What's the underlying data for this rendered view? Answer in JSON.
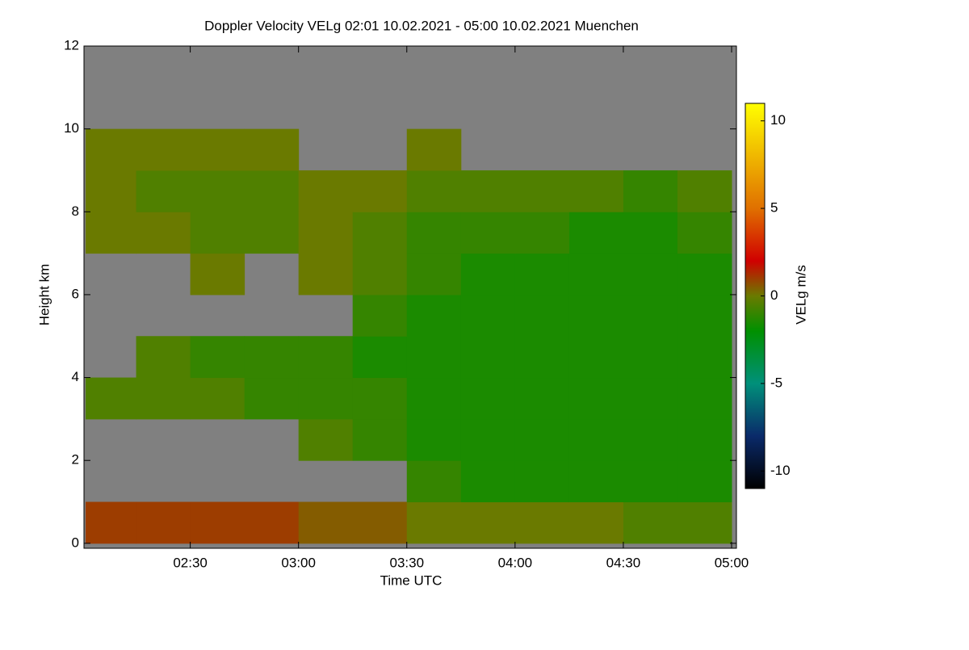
{
  "chart_data": {
    "type": "heatmap",
    "title": "Doppler Velocity VELg   02:01 10.02.2021 - 05:00 10.02.2021 Muenchen",
    "xlabel": "Time UTC",
    "ylabel": "Height km",
    "colorbar_label": "VELg m/s",
    "xlim": [
      2.0167,
      5.0
    ],
    "xticks": [
      {
        "value": 2.5,
        "label": "02:30"
      },
      {
        "value": 3.0,
        "label": "03:00"
      },
      {
        "value": 3.5,
        "label": "03:30"
      },
      {
        "value": 4.0,
        "label": "04:00"
      },
      {
        "value": 4.5,
        "label": "04:30"
      },
      {
        "value": 5.0,
        "label": "05:00"
      }
    ],
    "ylim": [
      -0.12,
      12
    ],
    "yticks": [
      0,
      2,
      4,
      6,
      8,
      10,
      12
    ],
    "x_edges": [
      2.0167,
      2.25,
      2.5,
      2.75,
      3.0,
      3.25,
      3.5,
      3.75,
      4.0,
      4.25,
      4.5,
      4.75,
      5.0
    ],
    "y_edges": [
      0,
      1,
      2,
      3,
      4,
      5,
      6,
      7,
      8,
      9,
      10,
      11,
      12
    ],
    "z": [
      [
        1,
        1,
        1,
        1,
        0.5,
        0.5,
        0,
        0,
        0,
        0,
        -0.5,
        -0.5
      ],
      [
        null,
        null,
        null,
        null,
        null,
        null,
        -1,
        -1.5,
        -1.5,
        -1.5,
        -1.5,
        -1.5
      ],
      [
        null,
        null,
        null,
        null,
        -0.5,
        -1,
        -1.5,
        -1.5,
        -1.5,
        -1.5,
        -1.5,
        -1.5
      ],
      [
        -0.5,
        -0.5,
        -0.5,
        -1,
        -1,
        -1,
        -1.5,
        -1.5,
        -1.5,
        -1.5,
        -1.5,
        -1.5
      ],
      [
        null,
        -0.5,
        -1,
        -1,
        -1,
        -1.5,
        -1.5,
        -1.5,
        -1.5,
        -1.5,
        -1.5,
        -1.5
      ],
      [
        null,
        null,
        null,
        null,
        null,
        -1,
        -1.5,
        -1.5,
        -1.5,
        -1.5,
        -1.5,
        -1.5
      ],
      [
        null,
        null,
        0,
        null,
        0,
        -0.5,
        -1,
        -1.5,
        -1.5,
        -1.5,
        -1.5,
        -1.5
      ],
      [
        0,
        0,
        -0.5,
        -0.5,
        0,
        -0.5,
        -1,
        -1,
        -1,
        -1.5,
        -1.5,
        -1
      ],
      [
        0,
        -0.5,
        -0.5,
        -0.5,
        0,
        0,
        -0.5,
        -0.5,
        -0.5,
        -0.5,
        -1,
        -0.5
      ],
      [
        0,
        0,
        0,
        0,
        null,
        null,
        0,
        null,
        null,
        null,
        null,
        null
      ],
      [
        null,
        null,
        null,
        null,
        null,
        null,
        null,
        null,
        null,
        null,
        null,
        null
      ],
      [
        null,
        null,
        null,
        null,
        null,
        null,
        null,
        null,
        null,
        null,
        null,
        null
      ]
    ],
    "missing_color": "#808080",
    "zlim": [
      -11,
      11
    ],
    "zticks": [
      -10,
      -5,
      0,
      5,
      10
    ],
    "colorscale": [
      {
        "value": -11,
        "color": "#000000"
      },
      {
        "value": -8,
        "color": "#0a2a6a"
      },
      {
        "value": -5,
        "color": "#00907a"
      },
      {
        "value": -2,
        "color": "#009000"
      },
      {
        "value": 0,
        "color": "#6a7a00"
      },
      {
        "value": 2,
        "color": "#d00000"
      },
      {
        "value": 5,
        "color": "#e07000"
      },
      {
        "value": 11,
        "color": "#ffff00"
      }
    ]
  }
}
